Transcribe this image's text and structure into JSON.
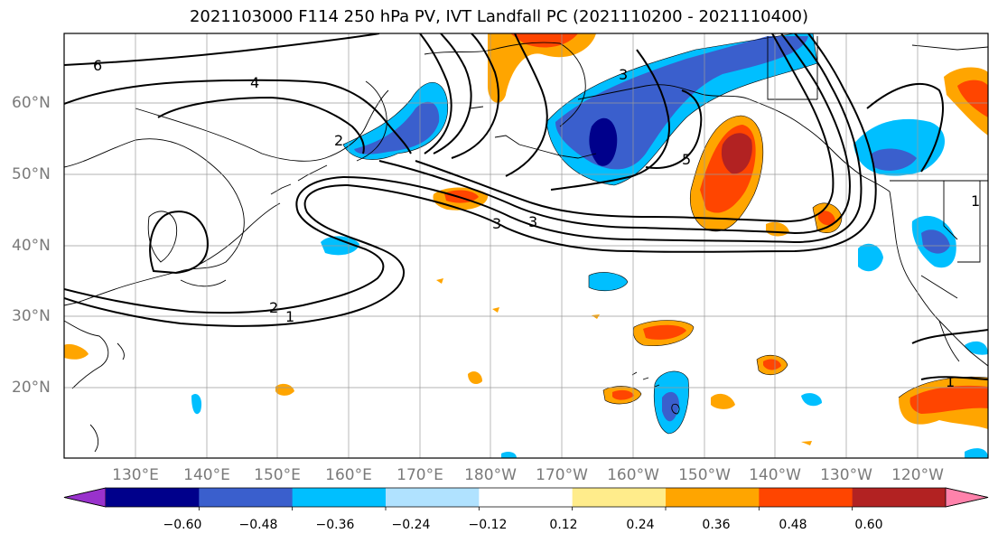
{
  "title": "2021103000 F114 250 hPa PV, IVT Landfall PC (2021110200 - 2021110400)",
  "lat_labels": [
    "60°N",
    "50°N",
    "40°N",
    "30°N",
    "20°N"
  ],
  "lon_labels": [
    "130°E",
    "140°E",
    "150°E",
    "160°E",
    "170°E",
    "180°W",
    "170°W",
    "160°W",
    "150°W",
    "140°W",
    "130°W",
    "120°W"
  ],
  "contour_labels": [
    "6",
    "4",
    "2",
    "2",
    "1",
    "3",
    "3",
    "5",
    "3",
    "1",
    "1"
  ],
  "colorbar": {
    "colors": [
      "#9932cc",
      "#00008b",
      "#3a5fcd",
      "#00bfff",
      "#b0e2ff",
      "#ffffff",
      "#ffec8b",
      "#ffa500",
      "#ff4500",
      "#b22222",
      "#ff82ab"
    ],
    "tick_labels": [
      "−0.60",
      "−0.48",
      "−0.36",
      "−0.24",
      "−0.12",
      "0.12",
      "0.24",
      "0.36",
      "0.48",
      "0.60"
    ]
  }
}
